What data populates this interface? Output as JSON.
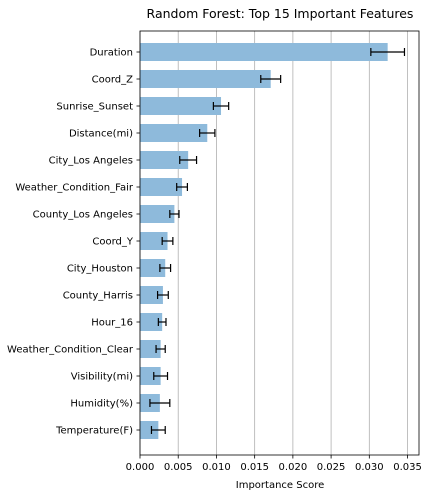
{
  "chart_data": {
    "type": "bar",
    "orientation": "horizontal",
    "title": "Random Forest: Top 15 Important Features",
    "xlabel": "Importance Score",
    "ylabel": "",
    "xlim": [
      0,
      0.0365
    ],
    "xticks": [
      "0.000",
      "0.005",
      "0.010",
      "0.015",
      "0.020",
      "0.025",
      "0.030",
      "0.035"
    ],
    "xtick_values": [
      0,
      0.005,
      0.01,
      0.015,
      0.02,
      0.025,
      0.03,
      0.035
    ],
    "grid": "x",
    "bar_color": "#8ebadb",
    "categories": [
      "Duration",
      "Coord_Z",
      "Sunrise_Sunset",
      "Distance(mi)",
      "City_Los Angeles",
      "Weather_Condition_Fair",
      "County_Los Angeles",
      "Coord_Y",
      "City_Houston",
      "County_Harris",
      "Hour_16",
      "Weather_Condition_Clear",
      "Visibility(mi)",
      "Humidity(%)",
      "Temperature(F)"
    ],
    "values": [
      0.0324,
      0.0171,
      0.0106,
      0.0088,
      0.0063,
      0.0055,
      0.0045,
      0.0036,
      0.0033,
      0.003,
      0.0029,
      0.0027,
      0.0027,
      0.0026,
      0.0024
    ],
    "errors": [
      0.0022,
      0.0013,
      0.001,
      0.001,
      0.0011,
      0.0007,
      0.0006,
      0.0007,
      0.0007,
      0.0007,
      0.0005,
      0.0006,
      0.0009,
      0.0013,
      0.0009
    ]
  }
}
